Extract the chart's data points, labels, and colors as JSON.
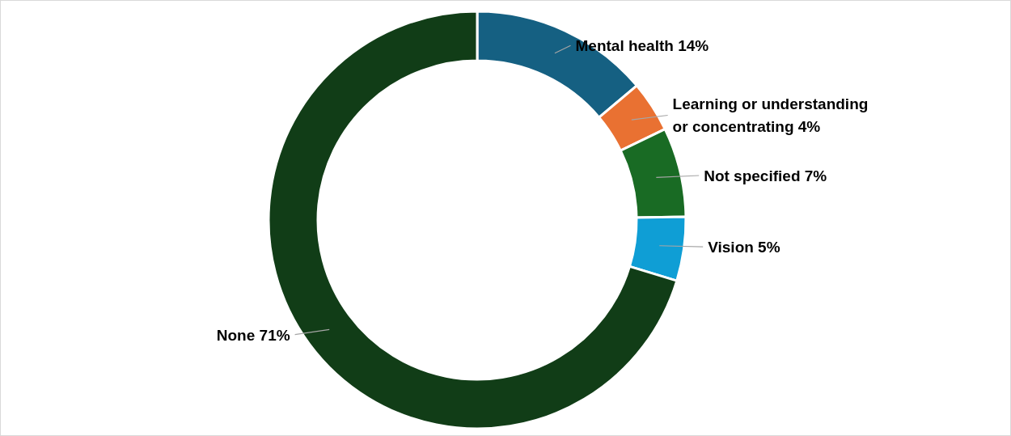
{
  "chart_data": {
    "type": "donut",
    "categories": [
      "Mental health",
      "Learning or understanding or concentrating",
      "Not specified",
      "Vision",
      "None"
    ],
    "values": [
      14,
      4,
      7,
      5,
      71
    ],
    "value_labels": [
      "14%",
      "4%",
      "7%",
      "5%",
      "71%"
    ],
    "colors": [
      "#156082",
      "#e97132",
      "#196b24",
      "#0f9ed5",
      "#113d17"
    ]
  }
}
